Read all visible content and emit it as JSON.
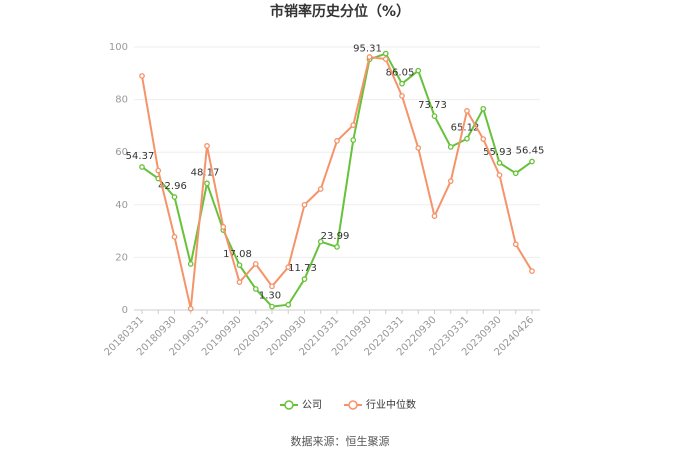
{
  "chart_data": {
    "type": "line",
    "title": "市销率历史分位（%）",
    "categories": [
      "20180331",
      null,
      "20180930",
      null,
      "20190331",
      null,
      "20190930",
      null,
      "20200331",
      null,
      "20200930",
      null,
      "20210331",
      null,
      "20210930",
      null,
      "20220331",
      null,
      "20220930",
      null,
      "20230331",
      null,
      "20230930",
      null,
      "20240426"
    ],
    "series": [
      {
        "name": "公司",
        "color": "#67c23a",
        "values": [
          54.37,
          50,
          42.96,
          17.5,
          48.17,
          30.4,
          17.08,
          8,
          1.3,
          2,
          11.73,
          26,
          23.99,
          64.6,
          95.31,
          97.5,
          86.05,
          91,
          73.73,
          62,
          65.12,
          76.5,
          55.93,
          52,
          56.45
        ],
        "value_labels": [
          "54.37",
          null,
          "42.96",
          null,
          "48.17",
          null,
          "17.08",
          null,
          "1.30",
          null,
          "11.73",
          null,
          "23.99",
          null,
          "95.31",
          null,
          "86.05",
          null,
          "73.73",
          null,
          "65.12",
          null,
          "55.93",
          null,
          "56.45"
        ]
      },
      {
        "name": "行业中位数",
        "color": "#f5936a",
        "values": [
          89,
          53,
          27.8,
          0.5,
          62.4,
          31.6,
          10.6,
          17.5,
          9,
          16.3,
          40,
          46,
          64.3,
          70.3,
          96.2,
          95.4,
          81.4,
          61.6,
          35.7,
          49,
          75.7,
          65,
          51.3,
          25,
          14.8
        ]
      }
    ],
    "ylim": [
      0,
      100
    ],
    "yticks": [
      0,
      20,
      40,
      60,
      80,
      100
    ],
    "grid": true,
    "legend": "bottom",
    "source": "数据来源：恒生聚源"
  }
}
